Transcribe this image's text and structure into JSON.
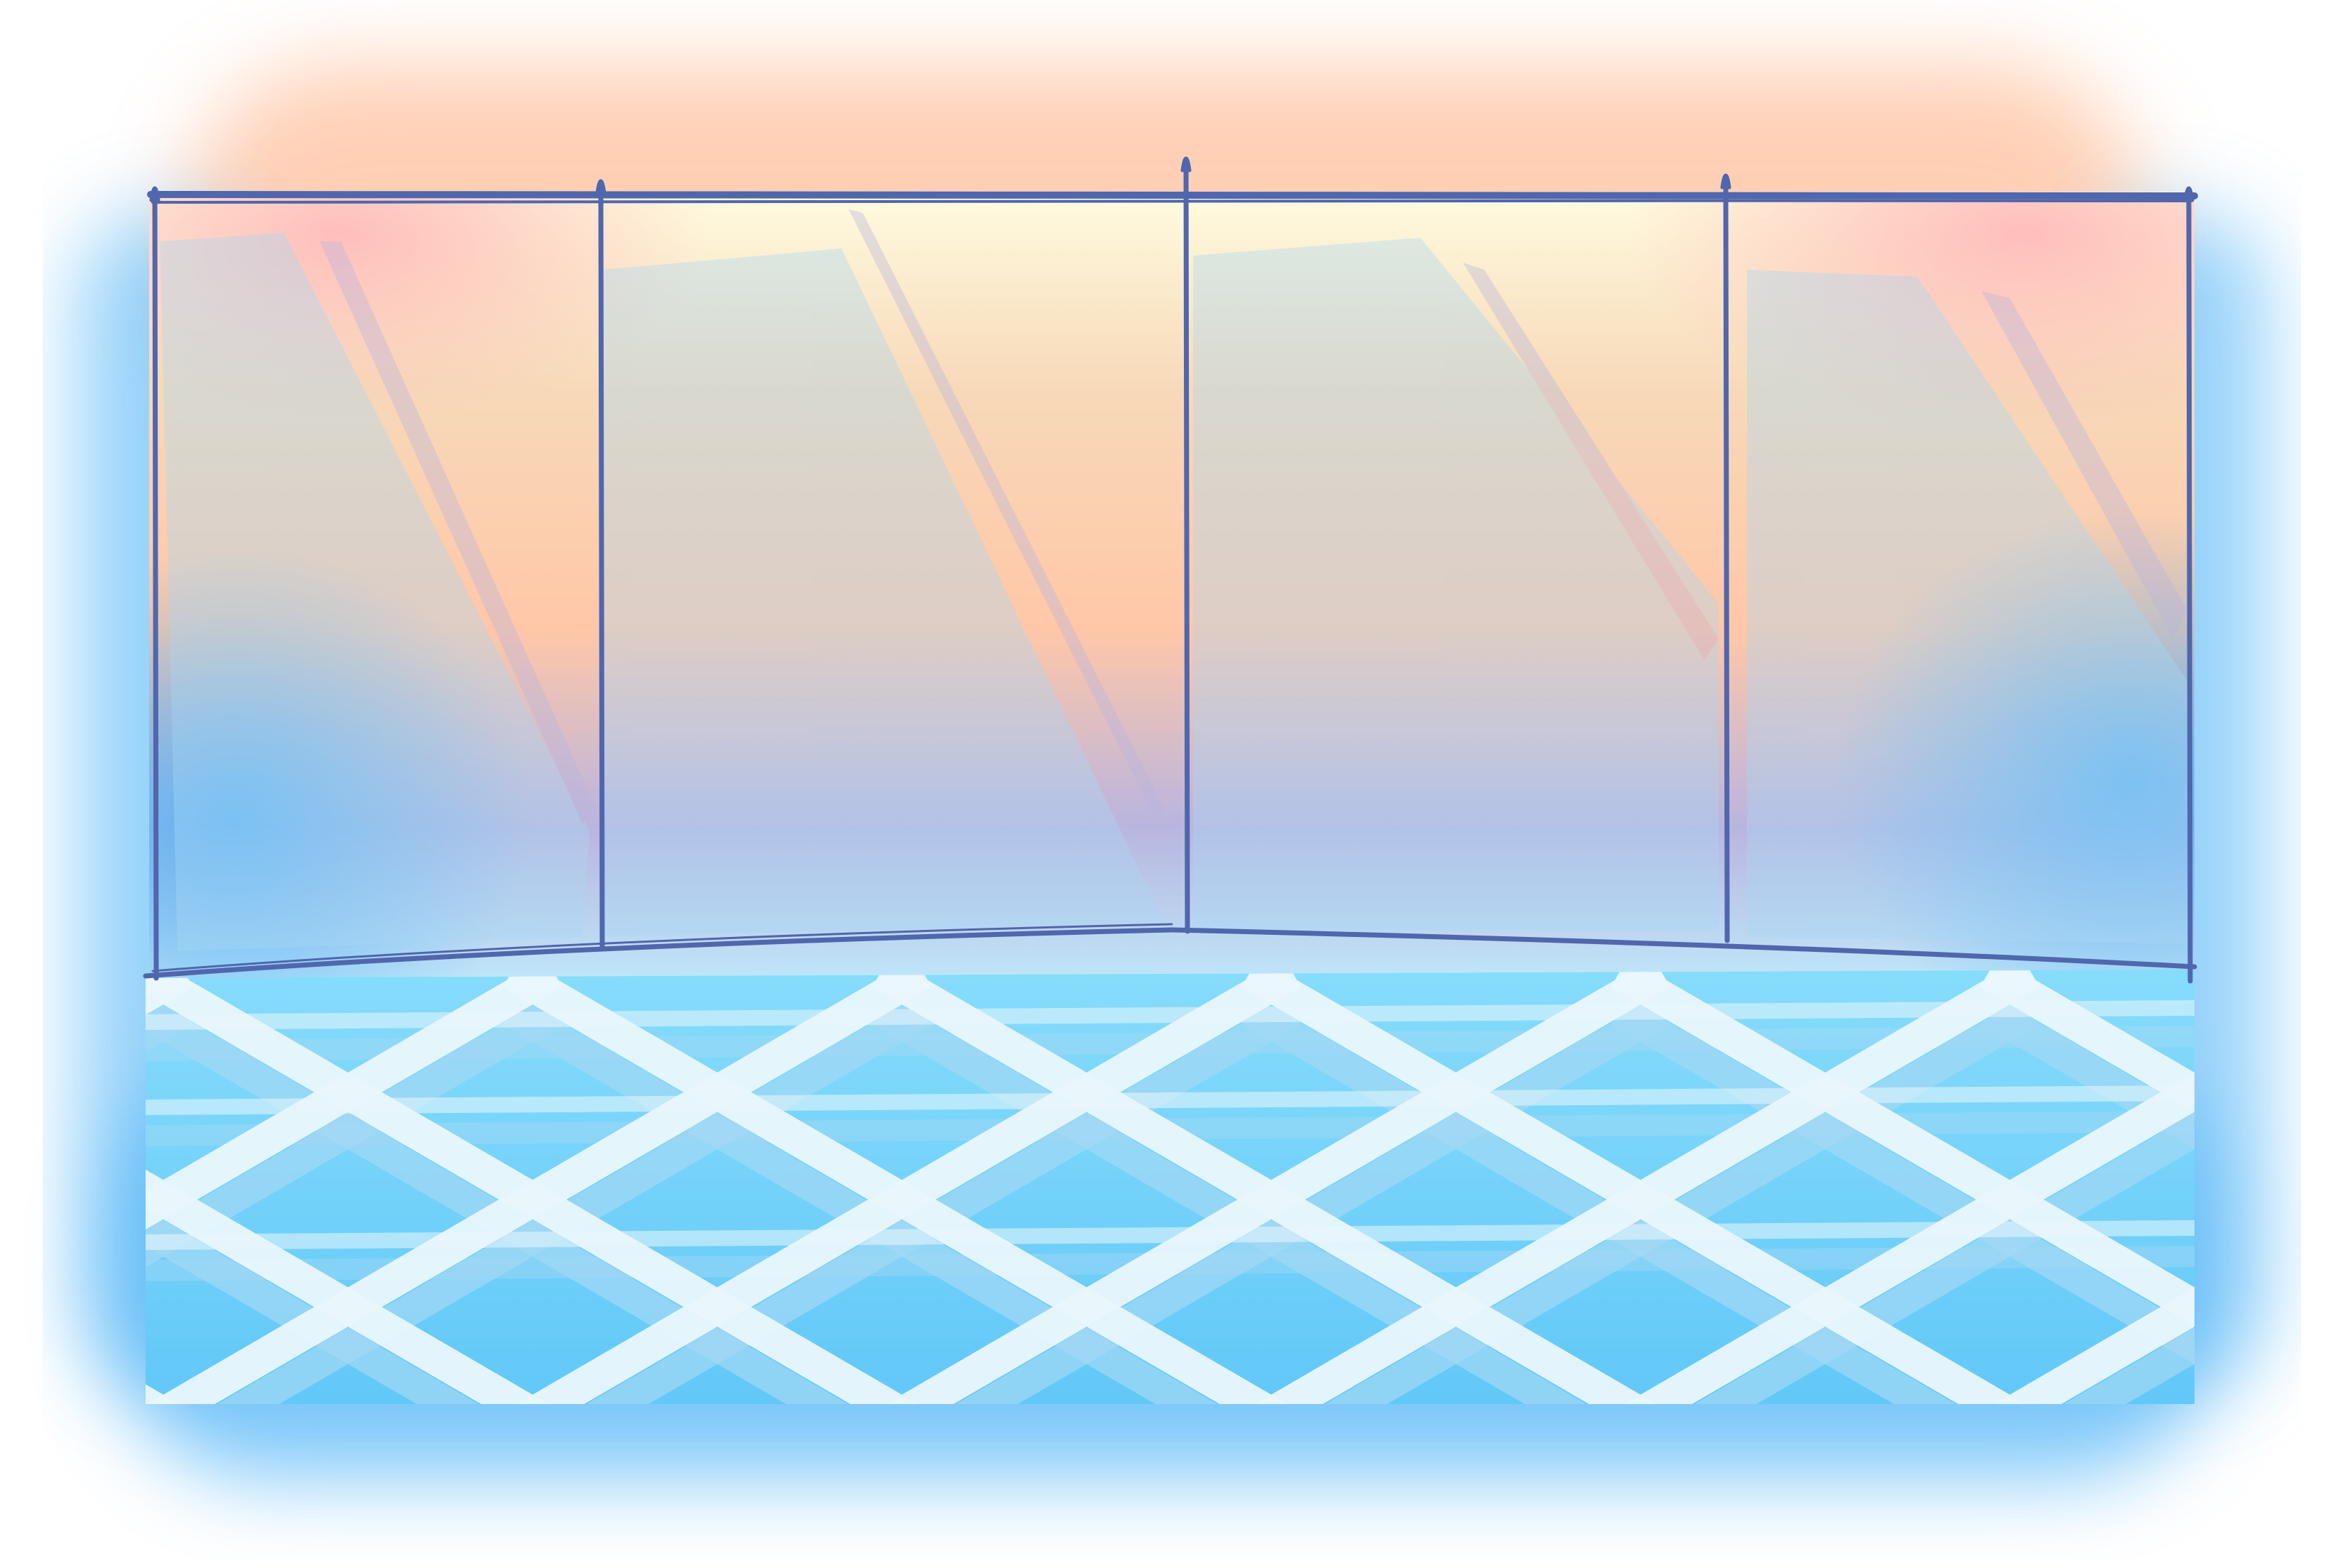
{
  "scene": {
    "subject": "",
    "palette": {
      "sky_top": "#fffbe0",
      "sky_warm": "#ffc7a8",
      "sky_pink": "#ffb8b8",
      "sky_mid": "#f7d9b8",
      "wall_lavender": "#b9b5df",
      "wall_blue": "#a9d8f5",
      "wall_bottom": "#bfe8fa",
      "glow_blue": "#4fb4f7",
      "frame_line": "#5066ad",
      "floor_tile": "#62c8f8",
      "floor_tile_light": "#86dcfb",
      "floor_line": "#eaf7fd",
      "floor_line_shade": "#a3d9f5"
    }
  }
}
